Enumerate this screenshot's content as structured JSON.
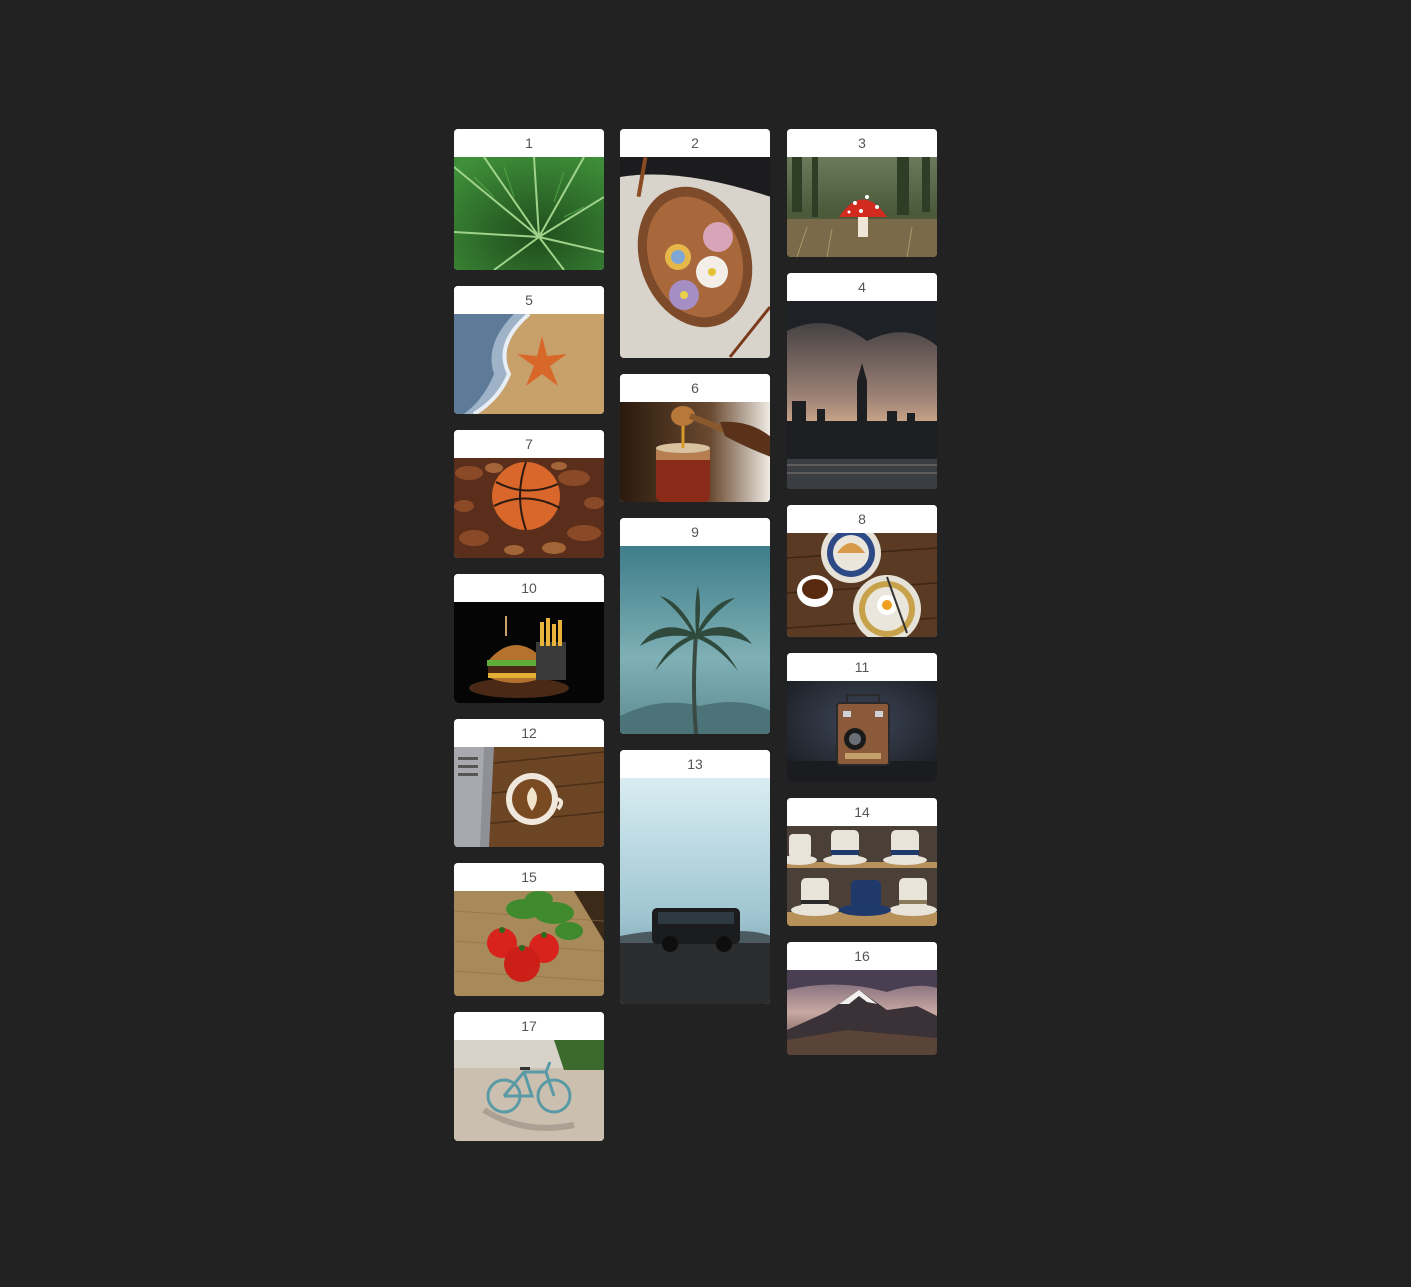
{
  "gallery": {
    "items": [
      {
        "label": "1",
        "subject": "fern-leaf-photo"
      },
      {
        "label": "2",
        "subject": "wagashi-plate-photo"
      },
      {
        "label": "3",
        "subject": "red-mushroom-photo"
      },
      {
        "label": "4",
        "subject": "big-ben-london-photo"
      },
      {
        "label": "5",
        "subject": "starfish-beach-photo"
      },
      {
        "label": "6",
        "subject": "honey-jar-photo"
      },
      {
        "label": "7",
        "subject": "basketball-leaves-photo"
      },
      {
        "label": "8",
        "subject": "breakfast-table-photo"
      },
      {
        "label": "9",
        "subject": "palm-tree-photo"
      },
      {
        "label": "10",
        "subject": "burger-fries-photo"
      },
      {
        "label": "11",
        "subject": "vintage-camera-photo"
      },
      {
        "label": "12",
        "subject": "latte-laptop-photo"
      },
      {
        "label": "13",
        "subject": "van-road-photo"
      },
      {
        "label": "14",
        "subject": "hats-shelf-photo"
      },
      {
        "label": "15",
        "subject": "tomatoes-basil-photo"
      },
      {
        "label": "16",
        "subject": "mountain-peak-photo"
      },
      {
        "label": "17",
        "subject": "bicycle-photo"
      }
    ]
  }
}
